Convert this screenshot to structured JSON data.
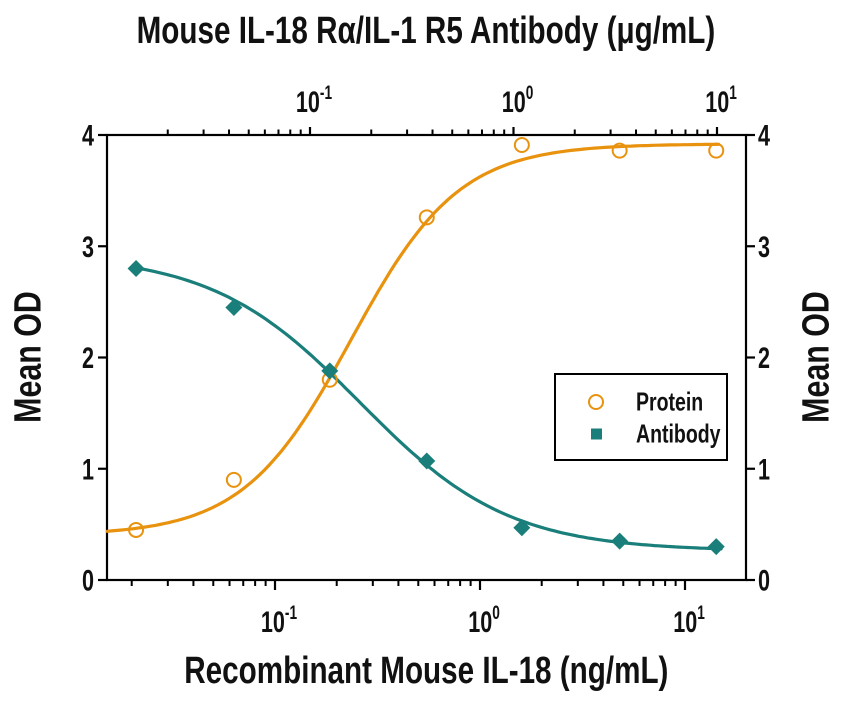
{
  "chart_data": {
    "type": "scatter",
    "x_scale": "log",
    "background": "#FFFFFF",
    "text_color": "#111111",
    "axis_color": "#000000",
    "top_axis": {
      "label": "Mouse IL-18 Rα/IL-1 R5 Antibody (μg/mL)",
      "unit": "μg/mL",
      "ticks": [
        {
          "base": "10",
          "exp": "-1",
          "value": 0.1
        },
        {
          "base": "10",
          "exp": "0",
          "value": 1
        },
        {
          "base": "10",
          "exp": "1",
          "value": 10
        }
      ],
      "range": [
        0.01,
        14
      ]
    },
    "bottom_axis": {
      "label": "Recombinant Mouse IL-18 (ng/mL)",
      "unit": "ng/mL",
      "ticks": [
        {
          "base": "10",
          "exp": "-1",
          "value": 0.1
        },
        {
          "base": "10",
          "exp": "0",
          "value": 1
        },
        {
          "base": "10",
          "exp": "1",
          "value": 10
        }
      ],
      "range": [
        0.015,
        19.8
      ]
    },
    "y_axis": {
      "label": "Mean OD",
      "ticks": [
        "0",
        "1",
        "2",
        "3",
        "4"
      ],
      "tick_values": [
        0,
        1,
        2,
        3,
        4
      ],
      "range": [
        0,
        4
      ],
      "sides": [
        "left",
        "right"
      ]
    },
    "series": [
      {
        "name": "Protein",
        "marker": "open-circle",
        "color": "#E8920E",
        "x_ng_mL": [
          0.021,
          0.063,
          0.185,
          0.55,
          1.6,
          4.8,
          14.2
        ],
        "y_od": [
          0.45,
          0.9,
          1.8,
          3.26,
          3.91,
          3.86,
          3.86
        ],
        "fit": {
          "type": "4PL",
          "direction": "increasing",
          "min": 0.4,
          "max": 3.92,
          "ec50": 0.235,
          "hill": 1.65,
          "x_start": 0.0152,
          "x_end": 14.6
        }
      },
      {
        "name": "Antibody",
        "marker": "filled-diamond",
        "color": "#1A7F7B",
        "x_ng_mL": [
          0.021,
          0.063,
          0.185,
          0.55,
          1.6,
          4.8,
          14.2
        ],
        "x_ug_mL": [
          0.014,
          0.041,
          0.12,
          0.37,
          1.1,
          3.3,
          9.9
        ],
        "y_od": [
          2.8,
          2.45,
          1.88,
          1.07,
          0.47,
          0.35,
          0.3
        ],
        "fit": {
          "type": "4PL",
          "direction": "decreasing",
          "min": 0.26,
          "max": 2.93,
          "ic50": 0.26,
          "hill": 1.2,
          "x_start": 0.0212,
          "x_end": 15.0
        }
      }
    ],
    "legend": {
      "items": [
        "Protein",
        "Antibody"
      ],
      "border_color": "#000000",
      "position": "right-center"
    }
  }
}
